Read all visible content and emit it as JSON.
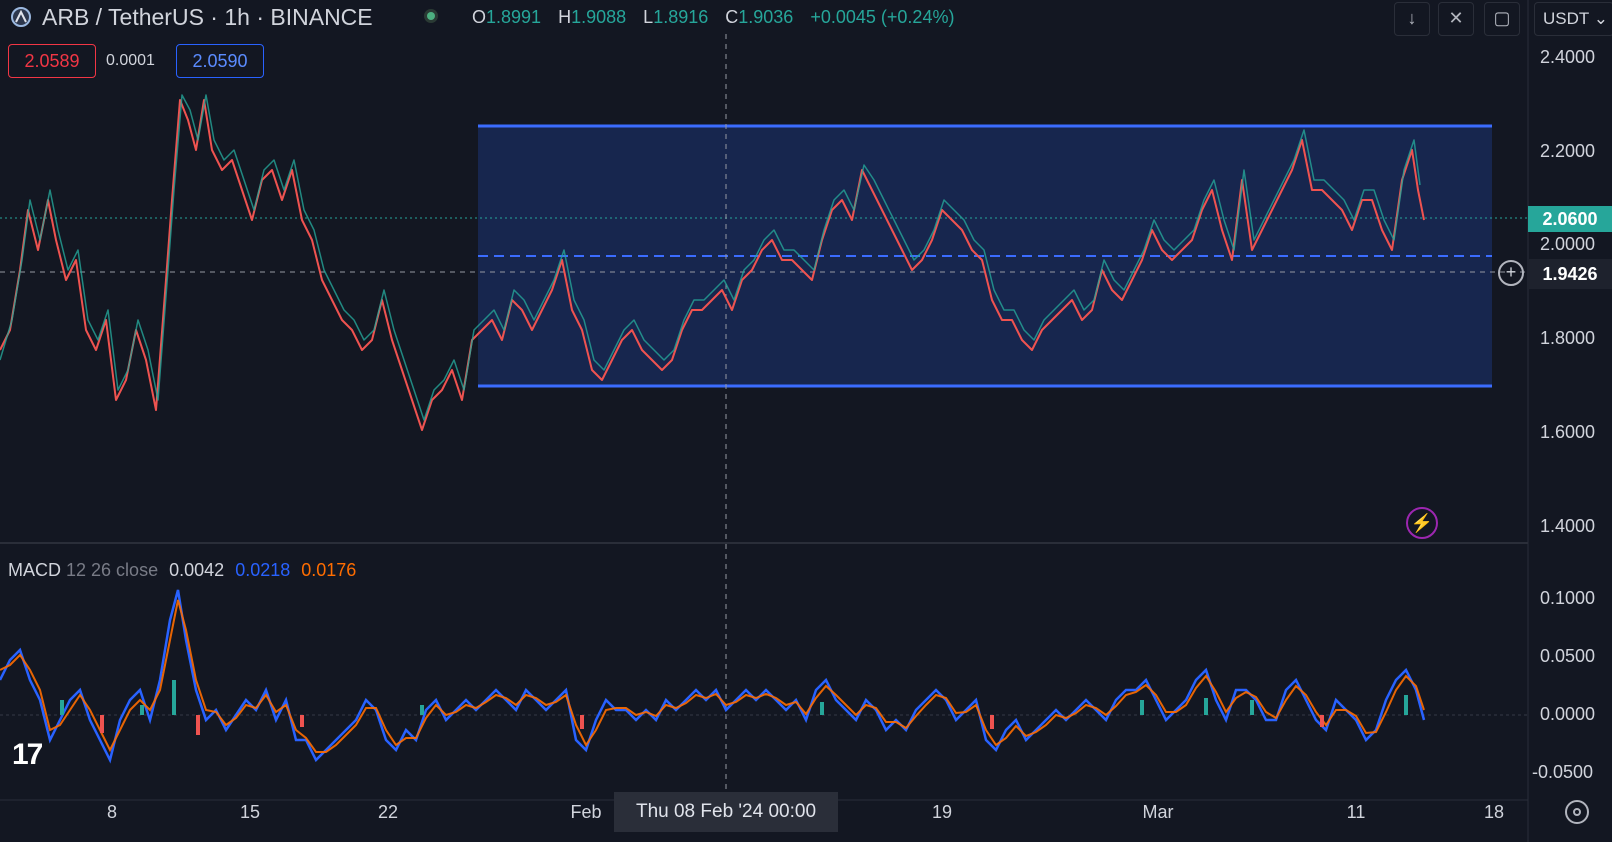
{
  "header": {
    "symbol": "ARB / TetherUS · 1h · BINANCE",
    "ohlc": {
      "o_label": "O",
      "o": "1.8991",
      "h_label": "H",
      "h": "1.9088",
      "l_label": "L",
      "l": "1.8916",
      "c_label": "C",
      "c": "1.9036",
      "change": "+0.0045 (+0.24%)"
    },
    "currency": "USDT ⌄"
  },
  "order_panel": {
    "bid": "2.0589",
    "spread": "0.0001",
    "ask": "2.0590"
  },
  "price_axis": {
    "ticks": [
      "2.4000",
      "2.2000",
      "2.0000",
      "1.8000",
      "1.6000",
      "1.4000"
    ],
    "last_price": "2.0600",
    "crosshair_price": "1.9426"
  },
  "macd": {
    "label": "MACD",
    "params": "12 26 close",
    "histogram_value": "0.0042",
    "macd_value": "0.0218",
    "signal_value": "0.0176",
    "ticks": [
      "0.1000",
      "0.0500",
      "0.0000",
      "-0.0500"
    ]
  },
  "time_axis": {
    "ticks": [
      "8",
      "15",
      "22",
      "Feb",
      "19",
      "Mar",
      "11",
      "18"
    ],
    "crosshair_date": "Thu 08 Feb '24   00:00"
  },
  "colors": {
    "background": "#131722",
    "up": "#26a69a",
    "down": "#ef5350",
    "range_box": "#2962ff",
    "macd_line": "#2962ff",
    "signal_line": "#ff6d00"
  },
  "icons": {
    "logo": "tradingview-logo",
    "download": "arrow-down-icon",
    "collapse": "collapse-icon",
    "layout": "square-icon",
    "alert": "lightning-icon",
    "settings": "gear-icon",
    "add": "plus-circle-icon"
  }
}
